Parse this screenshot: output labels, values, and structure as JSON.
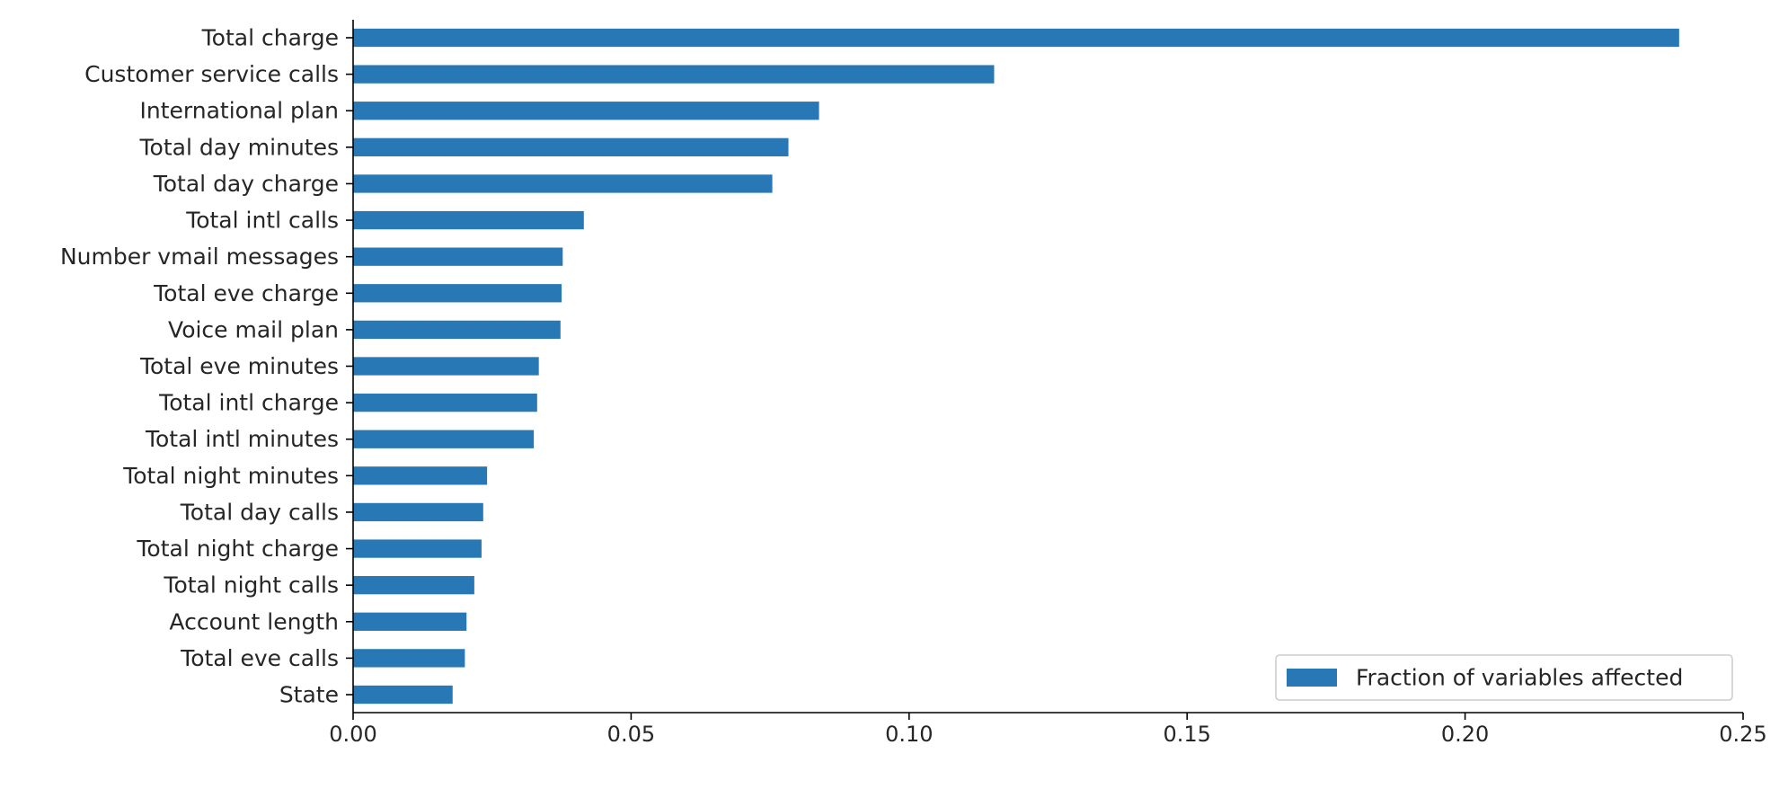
{
  "chart_data": {
    "type": "bar",
    "orientation": "horizontal",
    "categories": [
      "Total charge",
      "Customer service calls",
      "International plan",
      "Total day minutes",
      "Total day charge",
      "Total intl calls",
      "Number vmail messages",
      "Total eve charge",
      "Voice mail plan",
      "Total eve minutes",
      "Total intl charge",
      "Total intl minutes",
      "Total night minutes",
      "Total day calls",
      "Total night charge",
      "Total night calls",
      "Account length",
      "Total eve calls",
      "State"
    ],
    "series": [
      {
        "name": "Fraction of variables affected",
        "values": [
          0.2385,
          0.1153,
          0.0838,
          0.0783,
          0.0754,
          0.0415,
          0.0377,
          0.0375,
          0.0373,
          0.0334,
          0.0331,
          0.0325,
          0.0241,
          0.0234,
          0.0231,
          0.0218,
          0.0204,
          0.0201,
          0.0179
        ],
        "color": "#2878b5"
      }
    ],
    "xticks": [
      "0.00",
      "0.05",
      "0.10",
      "0.15",
      "0.20",
      "0.25"
    ],
    "xlim": [
      0,
      0.25
    ],
    "title": "",
    "xlabel": "",
    "ylabel": "",
    "grid": false,
    "legend": {
      "location": "lower-right",
      "entries": [
        "Fraction of variables affected"
      ]
    },
    "spines": [
      "left",
      "bottom"
    ]
  }
}
